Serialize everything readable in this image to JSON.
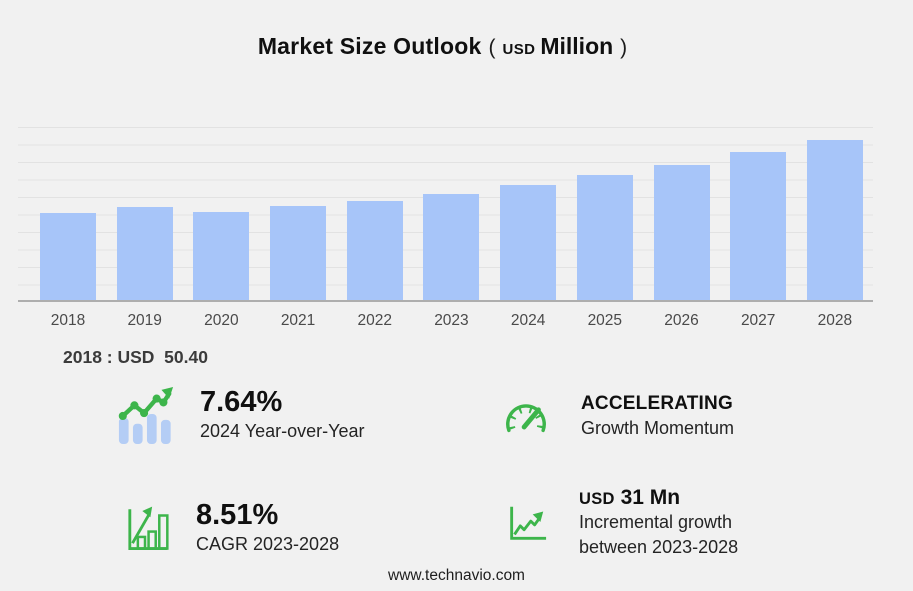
{
  "title": {
    "main": "Market Size Outlook",
    "paren_open": "(",
    "unit_small": "USD",
    "unit_big": "Million",
    "paren_close": ")"
  },
  "chart_data": {
    "type": "bar",
    "title": "Market Size Outlook (USD Million)",
    "categories": [
      "2018",
      "2019",
      "2020",
      "2021",
      "2022",
      "2023",
      "2024",
      "2025",
      "2026",
      "2027",
      "2028"
    ],
    "values": [
      50.4,
      53.9,
      50.6,
      54.2,
      57.5,
      61.5,
      66.2,
      72.0,
      77.9,
      85.6,
      92.5
    ],
    "xlabel": "",
    "ylabel": "",
    "unit": "USD Million",
    "ylim": [
      0,
      100
    ],
    "grid_step": 10,
    "grid": "horizontal",
    "legend": "none",
    "bar_color": "#a7c5f9"
  },
  "callout": {
    "base_year_value": "2018 : USD  50.40"
  },
  "stats": [
    {
      "value": "7.64%",
      "label": "2024 Year-over-Year",
      "icon": "bar-trend-up-icon"
    },
    {
      "value": "ACCELERATING",
      "label": "Growth Momentum",
      "icon": "speedometer-icon"
    },
    {
      "value": "8.51%",
      "label": "CAGR 2023-2028",
      "icon": "growth-bars-icon"
    },
    {
      "value_unit": "USD",
      "value_amount": "31 Mn",
      "label": "Incremental growth between 2023-2028",
      "icon": "line-chart-up-icon"
    }
  ],
  "footer": {
    "url": "www.technavio.com"
  },
  "colors": {
    "background": "#f1f1f1",
    "bar_fill": "#a7c5f9",
    "gridline": "#e2e2e2",
    "axis_line": "#aeaeae",
    "axis_label": "#4a4a4a",
    "heading_text": "#101010",
    "body_text": "#242424",
    "accent_green": "#3db54b",
    "icon_blue": "#b4cdf5"
  }
}
